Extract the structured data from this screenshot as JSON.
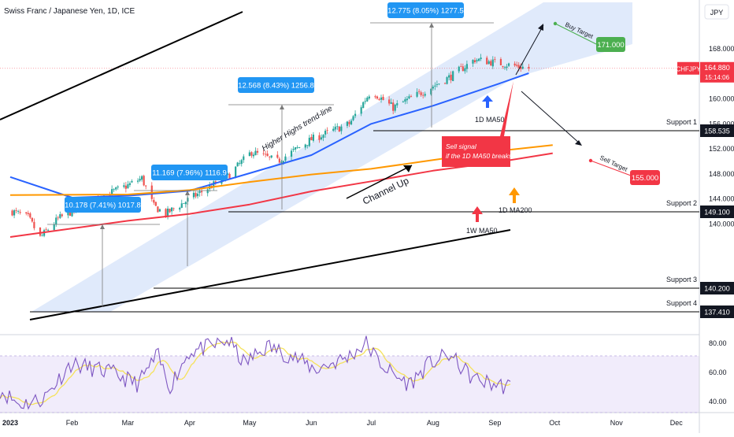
{
  "header": {
    "symbol_title": "Swiss Franc / Japanese Yen, 1D, ICE",
    "currency": "JPY"
  },
  "colors": {
    "bull": "#26a69a",
    "bear": "#ef5350",
    "ma50": "#2962ff",
    "ma200": "#ff9800",
    "wma50": "#f23645",
    "channel": "#dde8fb",
    "rsi": "#7e57c2",
    "rsi_ma": "#f5e25b",
    "label_blue": "#2196f3",
    "label_green": "#4caf50",
    "label_red": "#f23645"
  },
  "price_axis": {
    "ticks": [
      "168.000",
      "164.000",
      "160.000",
      "156.000",
      "152.000",
      "148.000",
      "144.000",
      "140.000"
    ]
  },
  "rsi_axis": {
    "ticks": [
      "80.00",
      "60.00",
      "40.00"
    ]
  },
  "time_axis": {
    "labels": [
      "2023",
      "Feb",
      "Mar",
      "Apr",
      "May",
      "Jun",
      "Jul",
      "Aug",
      "Sep",
      "Oct",
      "Nov",
      "Dec"
    ]
  },
  "current_price": {
    "symbol": "CHFJPY",
    "price": "164.880",
    "countdown": "15:14:06"
  },
  "supports": [
    {
      "label": "Support 1",
      "price": "158.535"
    },
    {
      "label": "Support 2",
      "price": "149.100"
    },
    {
      "label": "Support 3",
      "price": "140.200"
    },
    {
      "label": "Support 4",
      "price": "137.410"
    }
  ],
  "measures": [
    {
      "text": "10.178 (7.41%) 1017.8"
    },
    {
      "text": "11.169 (7.96%) 1116.9"
    },
    {
      "text": "12.568 (8.43%) 1256.8"
    },
    {
      "text": "12.775 (8.05%) 1277.5"
    }
  ],
  "annotations": {
    "trendline": "Higher Highs trend-line",
    "channel": "Channel Up",
    "ma50": "1D MA50",
    "ma200": "1D MA200",
    "wma50": "1W MA50",
    "sell_signal_1": "Sell signal",
    "sell_signal_2": "if the 1D MA50 breaks",
    "buy_target_label": "Buy Target",
    "buy_target_price": "171.000",
    "sell_target_label": "Sell Target",
    "sell_target_price": "155.000"
  },
  "chart_data": {
    "type": "candlestick",
    "title": "Swiss Franc / Japanese Yen, 1D, ICE",
    "x_range": [
      "2023-01-01",
      "2023-12-31"
    ],
    "y_range": [
      134.5,
      172.5
    ],
    "last_price": 164.88,
    "series": [
      {
        "name": "CHFJPY",
        "approx_close_path": [
          [
            "2023-01-02",
            142.0
          ],
          [
            "2023-01-10",
            141.0
          ],
          [
            "2023-01-16",
            137.8
          ],
          [
            "2023-01-25",
            140.8
          ],
          [
            "2023-02-10",
            143.6
          ],
          [
            "2023-02-28",
            146.0
          ],
          [
            "2023-03-08",
            147.3
          ],
          [
            "2023-03-14",
            142.8
          ],
          [
            "2023-03-20",
            141.6
          ],
          [
            "2023-03-31",
            143.8
          ],
          [
            "2023-04-20",
            147.6
          ],
          [
            "2023-05-02",
            151.5
          ],
          [
            "2023-05-15",
            150.0
          ],
          [
            "2023-06-01",
            153.5
          ],
          [
            "2023-06-20",
            156.0
          ],
          [
            "2023-07-01",
            161.3
          ],
          [
            "2023-07-12",
            158.6
          ],
          [
            "2023-07-25",
            160.8
          ],
          [
            "2023-08-10",
            163.6
          ],
          [
            "2023-08-22",
            166.3
          ],
          [
            "2023-09-05",
            165.6
          ],
          [
            "2023-09-18",
            164.88
          ]
        ]
      }
    ],
    "moving_averages": [
      {
        "name": "1D MA50",
        "points": [
          [
            "2023-01-01",
            147.5
          ],
          [
            "2023-02-01",
            144.2
          ],
          [
            "2023-03-01",
            144.5
          ],
          [
            "2023-04-01",
            145.3
          ],
          [
            "2023-05-01",
            148.1
          ],
          [
            "2023-06-01",
            151.0
          ],
          [
            "2023-07-01",
            156.0
          ],
          [
            "2023-08-01",
            158.9
          ],
          [
            "2023-09-01",
            162.2
          ],
          [
            "2023-09-18",
            164.1
          ]
        ]
      },
      {
        "name": "1D MA200",
        "points": [
          [
            "2023-01-01",
            144.6
          ],
          [
            "2023-03-01",
            144.7
          ],
          [
            "2023-04-01",
            145.4
          ],
          [
            "2023-05-01",
            146.7
          ],
          [
            "2023-06-01",
            147.9
          ],
          [
            "2023-07-01",
            148.8
          ],
          [
            "2023-08-01",
            150.2
          ],
          [
            "2023-09-01",
            151.6
          ],
          [
            "2023-09-30",
            152.6
          ]
        ]
      },
      {
        "name": "1W MA50",
        "points": [
          [
            "2023-01-01",
            137.9
          ],
          [
            "2023-03-01",
            140.5
          ],
          [
            "2023-04-01",
            141.6
          ],
          [
            "2023-05-01",
            143.1
          ],
          [
            "2023-06-01",
            145.2
          ],
          [
            "2023-07-01",
            146.8
          ],
          [
            "2023-08-01",
            148.5
          ],
          [
            "2023-09-01",
            149.8
          ],
          [
            "2023-09-30",
            151.3
          ]
        ]
      }
    ],
    "rsi_range": [
      35,
      92
    ],
    "rsi_ticks": [
      80,
      60,
      40
    ]
  }
}
